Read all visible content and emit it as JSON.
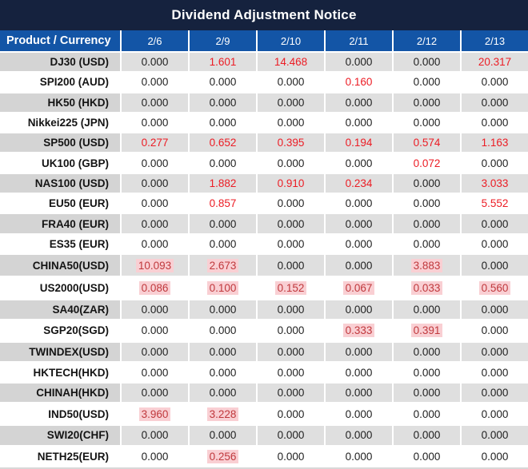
{
  "title": "Dividend Adjustment Notice",
  "colors": {
    "title_bg": "#15223E",
    "header_bg": "#1355A6",
    "row_gray_product": "#D4D4D4",
    "row_gray_value": "#DFDFDF",
    "red": "#EC1C24",
    "highlight_text": "#C0393D",
    "highlight_bg": "#F9CFD3"
  },
  "table": {
    "header": {
      "product_col": "Product / Currency",
      "dates": [
        "2/6",
        "2/9",
        "2/10",
        "2/11",
        "2/12",
        "2/13"
      ]
    },
    "rows": [
      {
        "product": "DJ30 (USD)",
        "values": [
          "0.000",
          "1.601",
          "14.468",
          "0.000",
          "0.000",
          "20.317"
        ],
        "styles": [
          "n",
          "r",
          "r",
          "n",
          "n",
          "r"
        ]
      },
      {
        "product": "SPI200 (AUD)",
        "values": [
          "0.000",
          "0.000",
          "0.000",
          "0.160",
          "0.000",
          "0.000"
        ],
        "styles": [
          "n",
          "n",
          "n",
          "r",
          "n",
          "n"
        ]
      },
      {
        "product": "HK50 (HKD)",
        "values": [
          "0.000",
          "0.000",
          "0.000",
          "0.000",
          "0.000",
          "0.000"
        ],
        "styles": [
          "n",
          "n",
          "n",
          "n",
          "n",
          "n"
        ]
      },
      {
        "product": "Nikkei225 (JPN)",
        "values": [
          "0.000",
          "0.000",
          "0.000",
          "0.000",
          "0.000",
          "0.000"
        ],
        "styles": [
          "n",
          "n",
          "n",
          "n",
          "n",
          "n"
        ]
      },
      {
        "product": "SP500 (USD)",
        "values": [
          "0.277",
          "0.652",
          "0.395",
          "0.194",
          "0.574",
          "1.163"
        ],
        "styles": [
          "r",
          "r",
          "r",
          "r",
          "r",
          "r"
        ]
      },
      {
        "product": "UK100 (GBP)",
        "values": [
          "0.000",
          "0.000",
          "0.000",
          "0.000",
          "0.072",
          "0.000"
        ],
        "styles": [
          "n",
          "n",
          "n",
          "n",
          "r",
          "n"
        ]
      },
      {
        "product": "NAS100 (USD)",
        "values": [
          "0.000",
          "1.882",
          "0.910",
          "0.234",
          "0.000",
          "3.033"
        ],
        "styles": [
          "n",
          "r",
          "r",
          "r",
          "n",
          "r"
        ]
      },
      {
        "product": "EU50 (EUR)",
        "values": [
          "0.000",
          "0.857",
          "0.000",
          "0.000",
          "0.000",
          "5.552"
        ],
        "styles": [
          "n",
          "r",
          "n",
          "n",
          "n",
          "r"
        ]
      },
      {
        "product": "FRA40 (EUR)",
        "values": [
          "0.000",
          "0.000",
          "0.000",
          "0.000",
          "0.000",
          "0.000"
        ],
        "styles": [
          "n",
          "n",
          "n",
          "n",
          "n",
          "n"
        ]
      },
      {
        "product": "ES35 (EUR)",
        "values": [
          "0.000",
          "0.000",
          "0.000",
          "0.000",
          "0.000",
          "0.000"
        ],
        "styles": [
          "n",
          "n",
          "n",
          "n",
          "n",
          "n"
        ]
      },
      {
        "product": "CHINA50(USD)",
        "values": [
          "10.093",
          "2.673",
          "0.000",
          "0.000",
          "3.883",
          "0.000"
        ],
        "styles": [
          "h",
          "h",
          "n",
          "n",
          "h",
          "n"
        ]
      },
      {
        "product": "US2000(USD)",
        "values": [
          "0.086",
          "0.100",
          "0.152",
          "0.067",
          "0.033",
          "0.560"
        ],
        "styles": [
          "h",
          "h",
          "h",
          "h",
          "h",
          "h"
        ]
      },
      {
        "product": "SA40(ZAR)",
        "values": [
          "0.000",
          "0.000",
          "0.000",
          "0.000",
          "0.000",
          "0.000"
        ],
        "styles": [
          "n",
          "n",
          "n",
          "n",
          "n",
          "n"
        ]
      },
      {
        "product": "SGP20(SGD)",
        "values": [
          "0.000",
          "0.000",
          "0.000",
          "0.333",
          "0.391",
          "0.000"
        ],
        "styles": [
          "n",
          "n",
          "n",
          "h",
          "h",
          "n"
        ]
      },
      {
        "product": "TWINDEX(USD)",
        "values": [
          "0.000",
          "0.000",
          "0.000",
          "0.000",
          "0.000",
          "0.000"
        ],
        "styles": [
          "n",
          "n",
          "n",
          "n",
          "n",
          "n"
        ]
      },
      {
        "product": "HKTECH(HKD)",
        "values": [
          "0.000",
          "0.000",
          "0.000",
          "0.000",
          "0.000",
          "0.000"
        ],
        "styles": [
          "n",
          "n",
          "n",
          "n",
          "n",
          "n"
        ]
      },
      {
        "product": "CHINAH(HKD)",
        "values": [
          "0.000",
          "0.000",
          "0.000",
          "0.000",
          "0.000",
          "0.000"
        ],
        "styles": [
          "n",
          "n",
          "n",
          "n",
          "n",
          "n"
        ]
      },
      {
        "product": "IND50(USD)",
        "values": [
          "3.960",
          "3.228",
          "0.000",
          "0.000",
          "0.000",
          "0.000"
        ],
        "styles": [
          "h",
          "h",
          "n",
          "n",
          "n",
          "n"
        ]
      },
      {
        "product": "SWI20(CHF)",
        "values": [
          "0.000",
          "0.000",
          "0.000",
          "0.000",
          "0.000",
          "0.000"
        ],
        "styles": [
          "n",
          "n",
          "n",
          "n",
          "n",
          "n"
        ]
      },
      {
        "product": "NETH25(EUR)",
        "values": [
          "0.000",
          "0.256",
          "0.000",
          "0.000",
          "0.000",
          "0.000"
        ],
        "styles": [
          "n",
          "h",
          "n",
          "n",
          "n",
          "n"
        ]
      }
    ]
  },
  "chart_data": {
    "type": "table",
    "title": "Dividend Adjustment Notice",
    "columns": [
      "Product / Currency",
      "2/6",
      "2/9",
      "2/10",
      "2/11",
      "2/12",
      "2/13"
    ],
    "rows": [
      [
        "DJ30 (USD)",
        0.0,
        1.601,
        14.468,
        0.0,
        0.0,
        20.317
      ],
      [
        "SPI200 (AUD)",
        0.0,
        0.0,
        0.0,
        0.16,
        0.0,
        0.0
      ],
      [
        "HK50 (HKD)",
        0.0,
        0.0,
        0.0,
        0.0,
        0.0,
        0.0
      ],
      [
        "Nikkei225 (JPN)",
        0.0,
        0.0,
        0.0,
        0.0,
        0.0,
        0.0
      ],
      [
        "SP500 (USD)",
        0.277,
        0.652,
        0.395,
        0.194,
        0.574,
        1.163
      ],
      [
        "UK100 (GBP)",
        0.0,
        0.0,
        0.0,
        0.0,
        0.072,
        0.0
      ],
      [
        "NAS100 (USD)",
        0.0,
        1.882,
        0.91,
        0.234,
        0.0,
        3.033
      ],
      [
        "EU50 (EUR)",
        0.0,
        0.857,
        0.0,
        0.0,
        0.0,
        5.552
      ],
      [
        "FRA40 (EUR)",
        0.0,
        0.0,
        0.0,
        0.0,
        0.0,
        0.0
      ],
      [
        "ES35 (EUR)",
        0.0,
        0.0,
        0.0,
        0.0,
        0.0,
        0.0
      ],
      [
        "CHINA50(USD)",
        10.093,
        2.673,
        0.0,
        0.0,
        3.883,
        0.0
      ],
      [
        "US2000(USD)",
        0.086,
        0.1,
        0.152,
        0.067,
        0.033,
        0.56
      ],
      [
        "SA40(ZAR)",
        0.0,
        0.0,
        0.0,
        0.0,
        0.0,
        0.0
      ],
      [
        "SGP20(SGD)",
        0.0,
        0.0,
        0.0,
        0.333,
        0.391,
        0.0
      ],
      [
        "TWINDEX(USD)",
        0.0,
        0.0,
        0.0,
        0.0,
        0.0,
        0.0
      ],
      [
        "HKTECH(HKD)",
        0.0,
        0.0,
        0.0,
        0.0,
        0.0,
        0.0
      ],
      [
        "CHINAH(HKD)",
        0.0,
        0.0,
        0.0,
        0.0,
        0.0,
        0.0
      ],
      [
        "IND50(USD)",
        3.96,
        3.228,
        0.0,
        0.0,
        0.0,
        0.0
      ],
      [
        "SWI20(CHF)",
        0.0,
        0.0,
        0.0,
        0.0,
        0.0,
        0.0
      ],
      [
        "NETH25(EUR)",
        0.0,
        0.256,
        0.0,
        0.0,
        0.0,
        0.0
      ]
    ]
  }
}
